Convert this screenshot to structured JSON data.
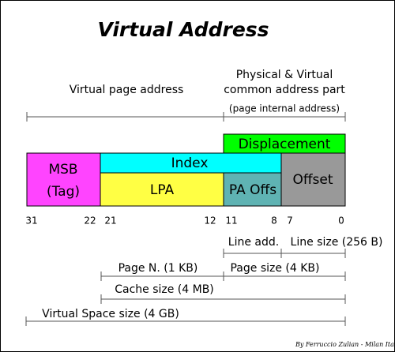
{
  "title": "Virtual Address",
  "labels": {
    "virtual_page_address": "Virtual page address",
    "common_line1": "Physical & Virtual",
    "common_line2": "common address part",
    "common_note": "(page internal address)"
  },
  "fields": {
    "displacement": "Displacement",
    "msb": "MSB",
    "tag": "(Tag)",
    "index": "Index",
    "lpa": "LPA",
    "pa_offs": "PA Offs",
    "offset": "Offset"
  },
  "bits": [
    "31",
    "22",
    "21",
    "12",
    "11",
    "8",
    "7",
    "0"
  ],
  "sizes": {
    "line_add": "Line add.",
    "line_size": "Line size (256 B)",
    "page_n": "Page N. (1 KB)",
    "page_size": "Page size (4 KB)",
    "cache_size": "Cache size (4 MB)",
    "virtual_space": "Virtual Space size  (4 GB)"
  },
  "footer": "By Ferruccio Zulian - Milan Italy"
}
